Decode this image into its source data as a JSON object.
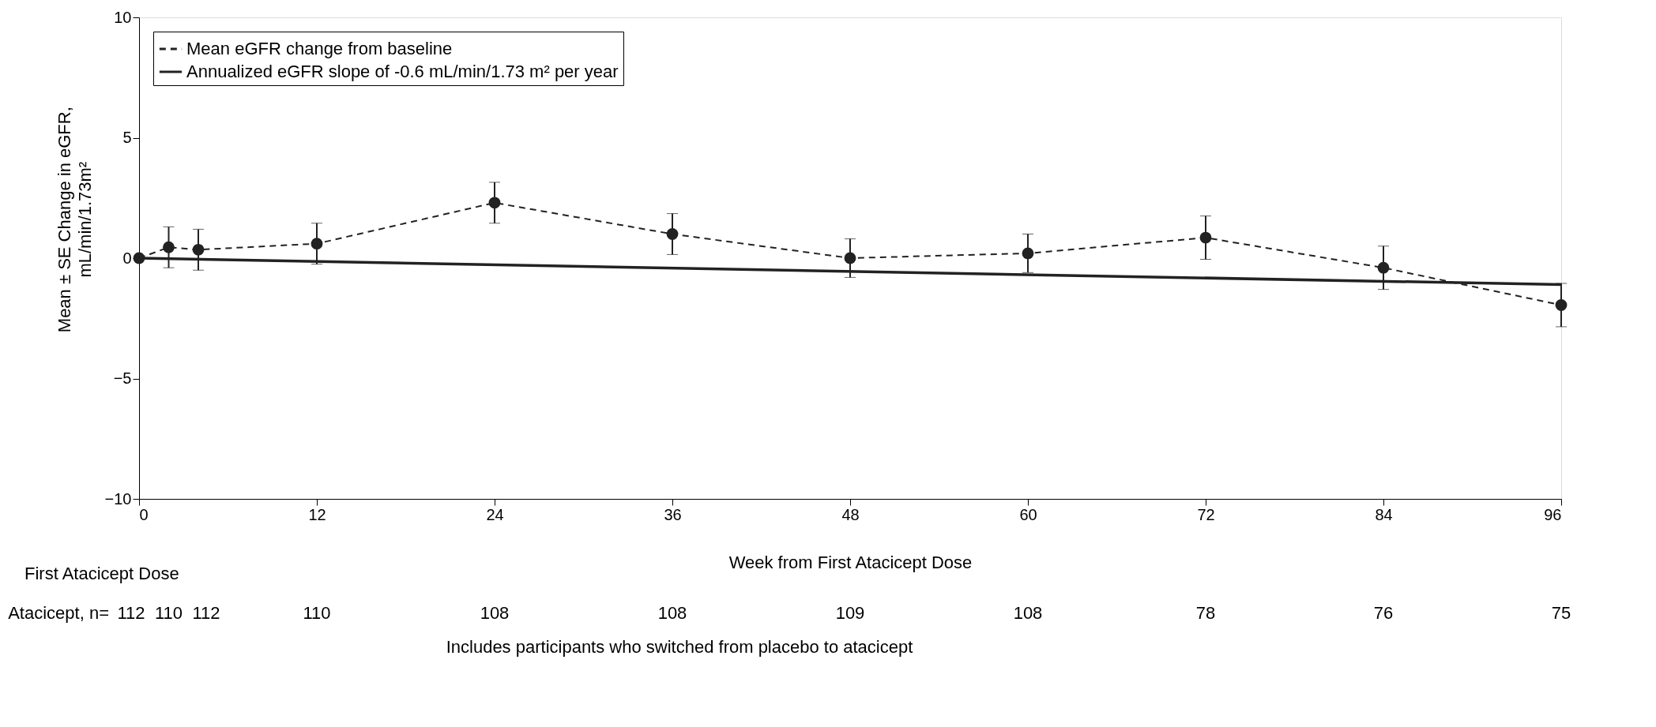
{
  "chart_data": {
    "type": "line",
    "xlabel": "Week from First Atacicept Dose",
    "ylabel": [
      "Mean ± SE Change in eGFR,",
      "mL/min/1.73m²"
    ],
    "xlim": [
      0,
      96
    ],
    "ylim": [
      -10,
      10
    ],
    "xticks": [
      0,
      12,
      24,
      36,
      48,
      60,
      72,
      84,
      96
    ],
    "yticks": [
      -10,
      -5,
      0,
      5,
      10
    ],
    "grid": false,
    "legend": "top left",
    "x": [
      0,
      2,
      4,
      12,
      24,
      36,
      48,
      60,
      72,
      84,
      96
    ],
    "series": [
      {
        "name": "Mean eGFR change from baseline",
        "color": "#222222",
        "marker": "circle",
        "line_style": "dashed",
        "values": [
          0,
          0.45,
          0.35,
          0.6,
          2.3,
          1.0,
          0.0,
          0.2,
          0.85,
          -0.4,
          -1.95
        ],
        "errors": [
          null,
          0.85,
          0.85,
          0.85,
          0.85,
          0.85,
          0.8,
          0.8,
          0.9,
          0.9,
          0.9
        ]
      },
      {
        "name": "Annualized eGFR slope of -0.6 mL/min/1.73 m² per year",
        "color": "#222222",
        "marker": "none",
        "line_style": "solid",
        "type": "line",
        "x": [
          0,
          96
        ],
        "values": [
          0,
          -1.1
        ]
      }
    ],
    "annotations": [
      "First Atacicept Dose",
      "Atacicept, n=",
      "112",
      "110",
      "112",
      "110",
      "108",
      "108",
      "109",
      "108",
      "78",
      "76",
      "75",
      "Includes participants who switched from placebo to atacicept"
    ]
  }
}
